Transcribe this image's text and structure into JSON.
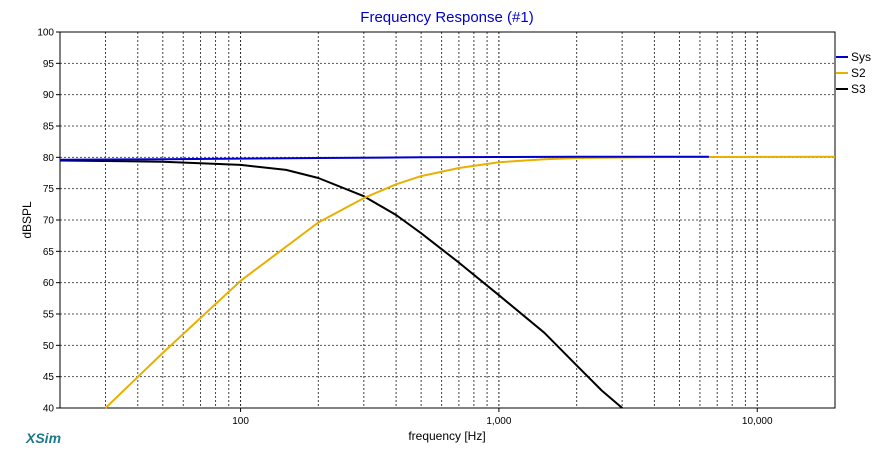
{
  "chart_data": {
    "type": "line",
    "title": "Frequency Response (#1)",
    "xlabel": "frequency [Hz]",
    "ylabel": "dBSPL",
    "xscale": "log",
    "xlim": [
      20,
      20000
    ],
    "ylim": [
      40,
      100
    ],
    "y_ticks": [
      40,
      45,
      50,
      55,
      60,
      65,
      70,
      75,
      80,
      85,
      90,
      95,
      100
    ],
    "x_tick_labels": [
      {
        "value": 100,
        "label": "100"
      },
      {
        "value": 1000,
        "label": "1,000"
      },
      {
        "value": 10000,
        "label": "10,000"
      }
    ],
    "grid": true,
    "legend_position": "right",
    "series": [
      {
        "name": "Sys",
        "color": "#0000cc",
        "points": [
          [
            20,
            79.6
          ],
          [
            50,
            79.7
          ],
          [
            100,
            79.8
          ],
          [
            200,
            79.9
          ],
          [
            500,
            80.0
          ],
          [
            1000,
            80.05
          ],
          [
            2000,
            80.1
          ],
          [
            6500,
            80.1
          ]
        ]
      },
      {
        "name": "S2",
        "color": "#e8b000",
        "points": [
          [
            30,
            40
          ],
          [
            50,
            48.8
          ],
          [
            100,
            60.3
          ],
          [
            200,
            69.6
          ],
          [
            300,
            73.5
          ],
          [
            400,
            75.7
          ],
          [
            500,
            77.0
          ],
          [
            700,
            78.3
          ],
          [
            1000,
            79.2
          ],
          [
            1500,
            79.7
          ],
          [
            2000,
            79.9
          ],
          [
            5000,
            80.05
          ],
          [
            20000,
            80.1
          ]
        ]
      },
      {
        "name": "S3",
        "color": "#000000",
        "points": [
          [
            20,
            79.5
          ],
          [
            50,
            79.3
          ],
          [
            100,
            78.8
          ],
          [
            150,
            78.0
          ],
          [
            200,
            76.7
          ],
          [
            300,
            73.8
          ],
          [
            400,
            70.8
          ],
          [
            500,
            67.9
          ],
          [
            700,
            63.2
          ],
          [
            1000,
            58.0
          ],
          [
            1500,
            52.0
          ],
          [
            2000,
            46.8
          ],
          [
            2500,
            42.8
          ],
          [
            3000,
            40.0
          ]
        ]
      }
    ]
  },
  "brand": {
    "text": "XSim",
    "color": "#1a7a8a"
  },
  "title_color": "#0000cc"
}
